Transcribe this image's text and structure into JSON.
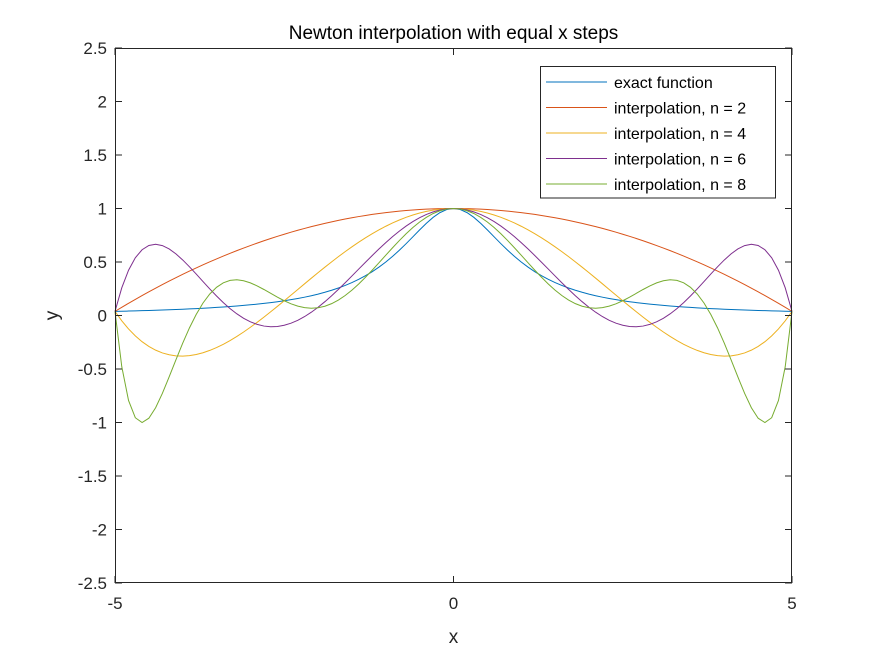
{
  "chart_data": {
    "type": "line",
    "title": "Newton interpolation with equal x steps",
    "xlabel": "x",
    "ylabel": "y",
    "xlim": [
      -5,
      5
    ],
    "ylim": [
      -2.5,
      2.5
    ],
    "xticks": [
      -5,
      0,
      5
    ],
    "xtick_labels": [
      "-5",
      "0",
      "5"
    ],
    "yticks": [
      -2.5,
      -2,
      -1.5,
      -1,
      -0.5,
      0,
      0.5,
      1,
      1.5,
      2,
      2.5
    ],
    "ytick_labels": [
      "-2.5",
      "-2",
      "-1.5",
      "-1",
      "-0.5",
      "0",
      "0.5",
      "1",
      "1.5",
      "2",
      "2.5"
    ],
    "grid": false,
    "legend_position": "top-right",
    "series": [
      {
        "name": "exact function",
        "color": "#0072BD",
        "function": "1/(1+x^2)"
      },
      {
        "name": "interpolation, n = 2",
        "color": "#D95319",
        "nodes": 2
      },
      {
        "name": "interpolation, n = 4",
        "color": "#EDB120",
        "nodes": 4
      },
      {
        "name": "interpolation, n = 6",
        "color": "#7E2F8E",
        "nodes": 6
      },
      {
        "name": "interpolation, n = 8",
        "color": "#77AC30",
        "nodes": 8
      }
    ],
    "sample_count": 101
  }
}
